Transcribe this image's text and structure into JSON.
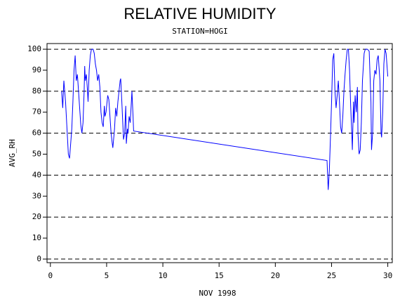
{
  "chart_data": {
    "type": "line",
    "title": "RELATIVE HUMIDITY",
    "subtitle": "STATION=HOGI",
    "x_label": "NOV 1998",
    "y_label": "AVG_RH",
    "xlim": [
      -0.3,
      30.4
    ],
    "ylim": [
      -1.7,
      102.7
    ],
    "xticks": [
      0,
      5,
      10,
      15,
      20,
      25,
      30
    ],
    "yticks": [
      0,
      10,
      20,
      30,
      40,
      50,
      60,
      70,
      80,
      90,
      100
    ],
    "grid_values": [
      0,
      20,
      40,
      60,
      80,
      100
    ],
    "series": [
      {
        "color": "#0000ff",
        "x": [
          1.0,
          1.1,
          1.2,
          1.35,
          1.5,
          1.6,
          1.7,
          1.8,
          1.9,
          2.0,
          2.1,
          2.2,
          2.3,
          2.4,
          2.5,
          2.6,
          2.7,
          2.8,
          2.9,
          3.0,
          3.05,
          3.1,
          3.2,
          3.3,
          3.35,
          3.45,
          3.55,
          3.65,
          3.8,
          3.9,
          4.0,
          4.1,
          4.2,
          4.3,
          4.4,
          4.5,
          4.6,
          4.7,
          4.8,
          4.85,
          4.95,
          5.1,
          5.2,
          5.3,
          5.4,
          5.5,
          5.55,
          5.7,
          5.8,
          5.9,
          6.0,
          6.1,
          6.2,
          6.25,
          6.35,
          6.45,
          6.5,
          6.6,
          6.7,
          6.75,
          6.85,
          6.9,
          7.0,
          7.1,
          7.2,
          7.25,
          7.35,
          7.4,
          24.6,
          24.7,
          24.8,
          24.9,
          25.0,
          25.1,
          25.2,
          25.3,
          25.4,
          25.5,
          25.6,
          25.7,
          25.8,
          25.9,
          26.0,
          26.1,
          26.2,
          26.3,
          26.4,
          26.5,
          26.6,
          26.7,
          26.8,
          26.85,
          26.95,
          27.0,
          27.1,
          27.2,
          27.3,
          27.35,
          27.45,
          27.55,
          27.65,
          27.75,
          27.9,
          28.0,
          28.2,
          28.35,
          28.5,
          28.55,
          28.65,
          28.75,
          28.85,
          28.95,
          29.05,
          29.15,
          29.3,
          29.4,
          29.45,
          29.55,
          29.65,
          29.75,
          29.85,
          30.0
        ],
        "values": [
          80,
          72,
          85,
          75,
          60,
          50,
          48,
          55,
          62,
          75,
          90,
          97,
          85,
          88,
          80,
          72,
          64,
          60,
          65,
          80,
          92,
          85,
          88,
          80,
          75,
          90,
          97,
          100,
          100,
          98,
          93,
          90,
          85,
          88,
          82,
          70,
          65,
          63,
          73,
          68,
          70,
          78,
          76,
          68,
          60,
          55,
          53,
          62,
          72,
          68,
          75,
          80,
          85,
          86,
          75,
          63,
          57,
          60,
          73,
          55,
          62,
          60,
          68,
          65,
          75,
          80,
          68,
          61,
          47,
          33,
          42,
          58,
          75,
          95,
          98,
          80,
          72,
          78,
          85,
          75,
          63,
          60,
          68,
          80,
          88,
          95,
          100,
          100,
          90,
          73,
          60,
          52,
          75,
          65,
          78,
          70,
          82,
          60,
          50,
          52,
          65,
          85,
          98,
          100,
          100,
          99,
          75,
          52,
          60,
          85,
          90,
          88,
          95,
          97,
          85,
          60,
          58,
          70,
          93,
          100,
          98,
          87
        ]
      }
    ]
  }
}
